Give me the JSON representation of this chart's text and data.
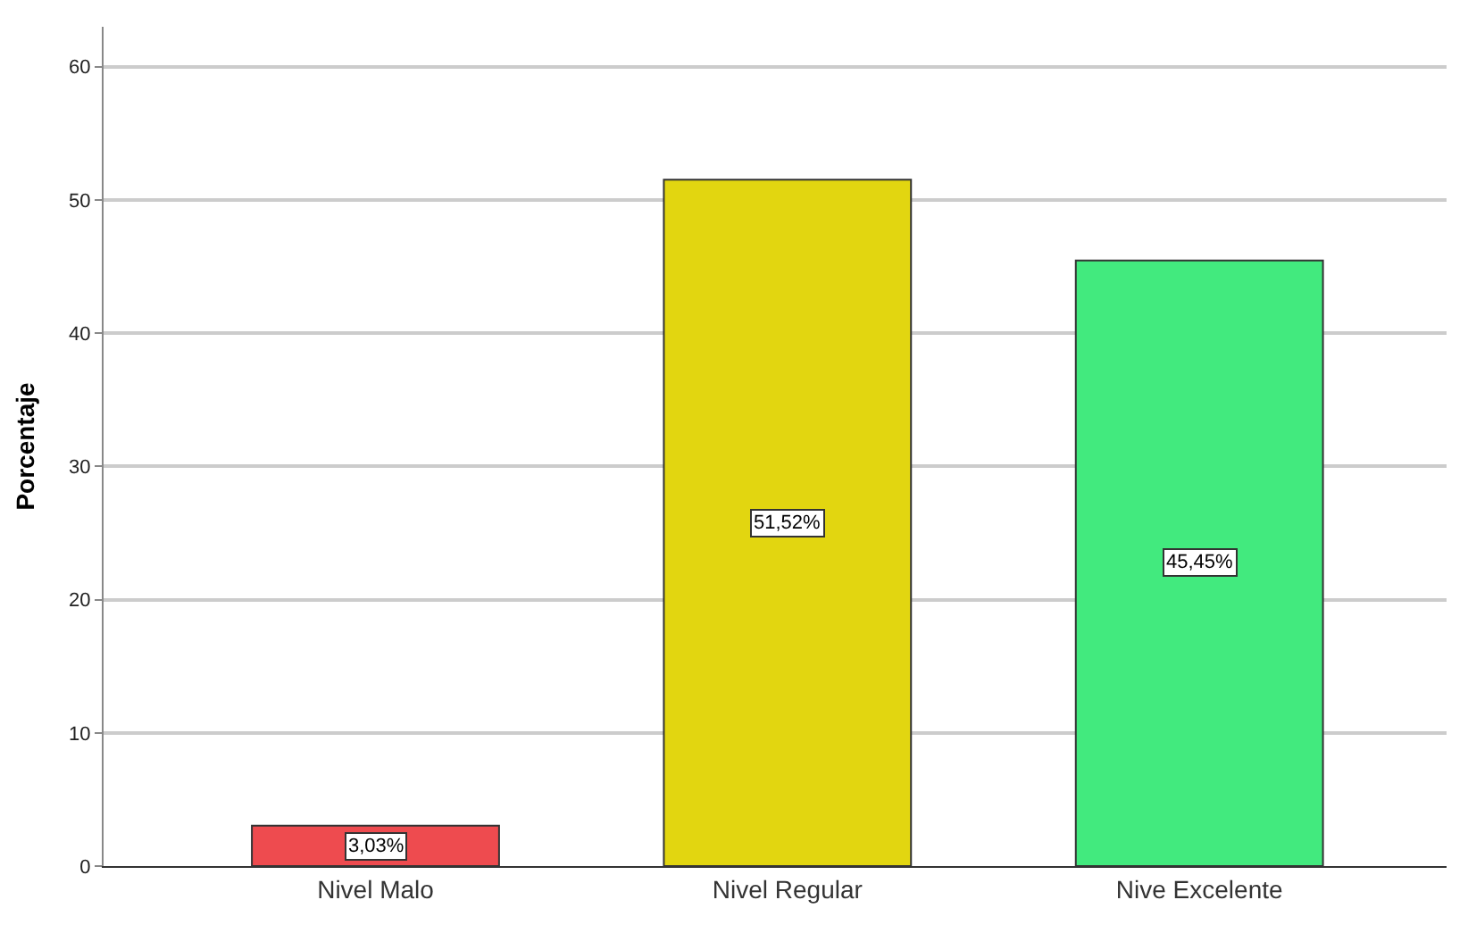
{
  "chart_data": {
    "type": "bar",
    "ylabel": "Porcentaje",
    "categories": [
      "Nivel Malo",
      "Nivel Regular",
      "Nive Excelente"
    ],
    "values": [
      3.03,
      51.52,
      45.45
    ],
    "value_labels": [
      "3,03%",
      "51,52%",
      "45,45%"
    ],
    "colors": [
      "#ee4b4f",
      "#e2d610",
      "#42ea7e"
    ],
    "ylim": [
      0,
      63
    ],
    "yticks": [
      0,
      10,
      20,
      30,
      40,
      50,
      60
    ],
    "grid": "y",
    "legend": false
  }
}
